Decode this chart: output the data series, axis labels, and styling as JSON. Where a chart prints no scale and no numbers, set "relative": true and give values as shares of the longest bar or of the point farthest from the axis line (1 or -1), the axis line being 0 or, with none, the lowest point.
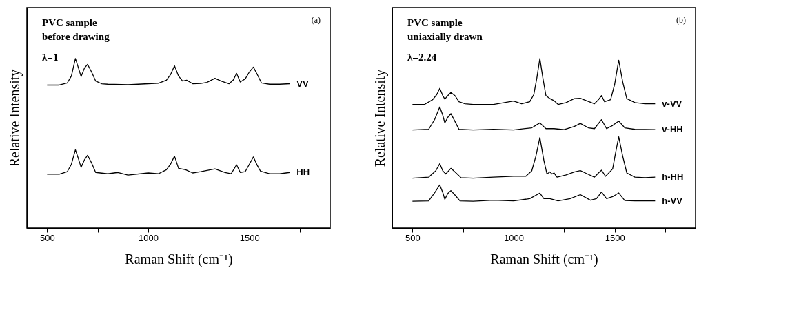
{
  "chart_data": [
    {
      "type": "line",
      "relative": true,
      "xlabel": "Raman Shift (cm⁻¹)",
      "ylabel": "Relative Intensity",
      "annotations": [
        "PVC sample",
        "before drawing",
        "λ=1",
        "(a)"
      ],
      "xlim": [
        400,
        1900
      ],
      "xticks": [
        500,
        {
          "value": 750,
          "label": null
        },
        1000,
        {
          "value": 1250,
          "label": null
        },
        1500,
        {
          "value": 1750,
          "label": null
        }
      ],
      "grid": false,
      "legend": false,
      "marker": "none",
      "line_style": "solid",
      "series": [
        {
          "name": "VV",
          "color": "#000000",
          "x": [
            500,
            560,
            600,
            620,
            640,
            655,
            668,
            685,
            700,
            720,
            740,
            770,
            800,
            900,
            1000,
            1050,
            1090,
            1110,
            1130,
            1150,
            1170,
            1190,
            1220,
            1260,
            1290,
            1330,
            1360,
            1400,
            1420,
            1437,
            1455,
            1480,
            1500,
            1520,
            1540,
            1560,
            1600,
            1650,
            1700
          ],
          "values": [
            0.843,
            0.843,
            0.856,
            0.896,
            1.0,
            0.944,
            0.893,
            0.944,
            0.965,
            0.92,
            0.867,
            0.851,
            0.848,
            0.845,
            0.851,
            0.854,
            0.872,
            0.904,
            0.957,
            0.896,
            0.867,
            0.872,
            0.851,
            0.853,
            0.859,
            0.883,
            0.867,
            0.851,
            0.872,
            0.912,
            0.861,
            0.88,
            0.92,
            0.949,
            0.904,
            0.856,
            0.848,
            0.848,
            0.851
          ]
        },
        {
          "name": "HH",
          "color": "#000000",
          "x": [
            500,
            560,
            600,
            620,
            640,
            655,
            668,
            685,
            700,
            720,
            740,
            800,
            850,
            900,
            1000,
            1050,
            1090,
            1110,
            1130,
            1150,
            1185,
            1220,
            1260,
            1330,
            1380,
            1410,
            1437,
            1455,
            1480,
            1500,
            1520,
            1540,
            1555,
            1600,
            1650,
            1700
          ],
          "values": [
            0.317,
            0.317,
            0.333,
            0.376,
            0.461,
            0.408,
            0.358,
            0.403,
            0.429,
            0.384,
            0.328,
            0.32,
            0.328,
            0.312,
            0.325,
            0.32,
            0.344,
            0.376,
            0.424,
            0.352,
            0.344,
            0.325,
            0.333,
            0.349,
            0.328,
            0.32,
            0.373,
            0.328,
            0.333,
            0.376,
            0.419,
            0.368,
            0.336,
            0.32,
            0.32,
            0.328
          ]
        }
      ]
    },
    {
      "type": "line",
      "relative": true,
      "xlabel": "Raman Shift (cm⁻¹)",
      "ylabel": "Relative Intensity",
      "annotations": [
        "PVC sample",
        "uniaxially drawn",
        "λ=2.24",
        "(b)"
      ],
      "xlim": [
        400,
        1900
      ],
      "xticks": [
        500,
        {
          "value": 750,
          "label": null
        },
        1000,
        {
          "value": 1250,
          "label": null
        },
        1500,
        {
          "value": 1750,
          "label": null
        }
      ],
      "grid": false,
      "legend": false,
      "marker": "none",
      "line_style": "solid",
      "series": [
        {
          "name": "v-VV",
          "color": "#000000",
          "x": [
            500,
            560,
            600,
            620,
            635,
            650,
            660,
            675,
            690,
            710,
            730,
            760,
            800,
            900,
            1000,
            1040,
            1080,
            1100,
            1115,
            1130,
            1145,
            1160,
            1180,
            1200,
            1220,
            1260,
            1300,
            1330,
            1360,
            1400,
            1420,
            1435,
            1450,
            1480,
            1500,
            1520,
            1540,
            1560,
            1600,
            1650,
            1700
          ],
          "values": [
            0.729,
            0.729,
            0.757,
            0.787,
            0.824,
            0.781,
            0.76,
            0.781,
            0.799,
            0.781,
            0.745,
            0.733,
            0.729,
            0.729,
            0.749,
            0.733,
            0.745,
            0.787,
            0.884,
            1.0,
            0.884,
            0.781,
            0.763,
            0.751,
            0.729,
            0.74,
            0.763,
            0.765,
            0.751,
            0.733,
            0.757,
            0.781,
            0.745,
            0.757,
            0.848,
            0.99,
            0.86,
            0.763,
            0.74,
            0.733,
            0.733
          ]
        },
        {
          "name": "v-HH",
          "color": "#000000",
          "x": [
            500,
            580,
            610,
            635,
            650,
            660,
            675,
            690,
            710,
            730,
            800,
            900,
            1000,
            1090,
            1130,
            1160,
            1200,
            1250,
            1300,
            1330,
            1370,
            1400,
            1435,
            1460,
            1490,
            1520,
            1550,
            1600,
            1700
          ],
          "values": [
            0.578,
            0.582,
            0.641,
            0.714,
            0.665,
            0.62,
            0.653,
            0.675,
            0.629,
            0.582,
            0.578,
            0.582,
            0.578,
            0.591,
            0.62,
            0.586,
            0.586,
            0.58,
            0.599,
            0.617,
            0.591,
            0.586,
            0.639,
            0.586,
            0.605,
            0.631,
            0.591,
            0.582,
            0.58
          ]
        },
        {
          "name": "h-HH",
          "color": "#000000",
          "x": [
            500,
            580,
            615,
            635,
            650,
            665,
            690,
            710,
            740,
            800,
            900,
            1000,
            1060,
            1090,
            1110,
            1130,
            1150,
            1165,
            1180,
            1190,
            1200,
            1215,
            1260,
            1300,
            1330,
            1360,
            1400,
            1420,
            1435,
            1455,
            1490,
            1505,
            1520,
            1540,
            1560,
            1600,
            1650,
            1700
          ],
          "values": [
            0.294,
            0.3,
            0.337,
            0.38,
            0.337,
            0.319,
            0.352,
            0.331,
            0.297,
            0.294,
            0.3,
            0.305,
            0.305,
            0.337,
            0.422,
            0.534,
            0.398,
            0.319,
            0.331,
            0.319,
            0.325,
            0.3,
            0.313,
            0.331,
            0.339,
            0.322,
            0.3,
            0.325,
            0.341,
            0.305,
            0.349,
            0.446,
            0.538,
            0.422,
            0.325,
            0.3,
            0.297,
            0.3
          ]
        },
        {
          "name": "h-VV",
          "color": "#000000",
          "x": [
            500,
            580,
            610,
            635,
            650,
            660,
            675,
            690,
            710,
            735,
            800,
            900,
            1000,
            1080,
            1130,
            1150,
            1180,
            1220,
            1280,
            1330,
            1380,
            1410,
            1435,
            1460,
            1490,
            1520,
            1550,
            1600,
            1700
          ],
          "values": [
            0.158,
            0.16,
            0.209,
            0.254,
            0.209,
            0.169,
            0.204,
            0.221,
            0.195,
            0.16,
            0.158,
            0.164,
            0.16,
            0.173,
            0.206,
            0.173,
            0.173,
            0.16,
            0.173,
            0.197,
            0.164,
            0.173,
            0.213,
            0.173,
            0.185,
            0.207,
            0.162,
            0.16,
            0.16
          ]
        }
      ]
    }
  ]
}
